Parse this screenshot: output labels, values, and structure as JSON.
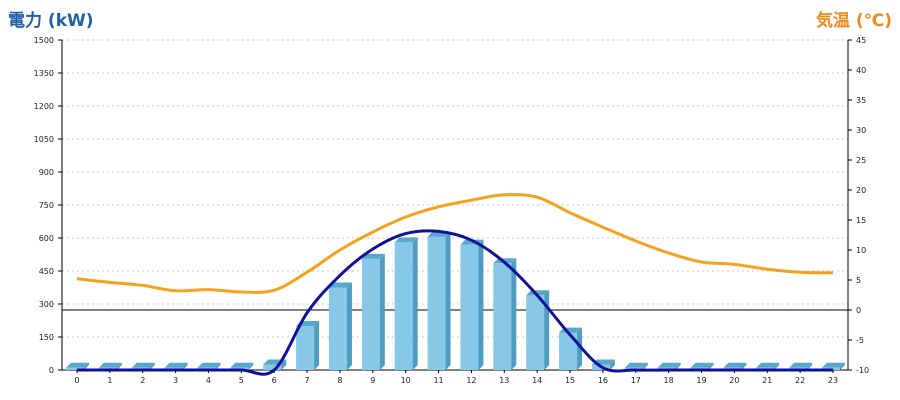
{
  "chart_data": {
    "type": "bar",
    "title_left": "電力 (kW)",
    "title_right": "気温 (℃)",
    "categories": [
      "0",
      "1",
      "2",
      "3",
      "4",
      "5",
      "6",
      "7",
      "8",
      "9",
      "10",
      "11",
      "12",
      "13",
      "14",
      "15",
      "16",
      "17",
      "18",
      "19",
      "20",
      "21",
      "22",
      "23"
    ],
    "left_axis": {
      "min": 0,
      "max": 1500,
      "ticks": [
        0,
        150,
        300,
        450,
        600,
        750,
        900,
        1050,
        1200,
        1350,
        1500
      ]
    },
    "right_axis": {
      "min": -10,
      "max": 45,
      "ticks": [
        -10,
        -5,
        0,
        5,
        10,
        15,
        20,
        25,
        30,
        35,
        40,
        45
      ]
    },
    "grid": true,
    "series": [
      {
        "kind": "bar",
        "axis": "left",
        "values": [
          10,
          10,
          10,
          10,
          10,
          10,
          25,
          200,
          375,
          505,
          580,
          605,
          570,
          485,
          340,
          170,
          25,
          10,
          10,
          10,
          10,
          10,
          10,
          10
        ]
      },
      {
        "kind": "line",
        "axis": "left",
        "values": [
          0,
          0,
          0,
          0,
          0,
          0,
          0,
          260,
          430,
          550,
          620,
          630,
          590,
          490,
          340,
          160,
          10,
          0,
          0,
          0,
          0,
          0,
          0,
          0
        ]
      },
      {
        "kind": "line",
        "axis": "right",
        "values": [
          5.2,
          4.6,
          4.1,
          3.2,
          3.4,
          3.0,
          3.3,
          6.3,
          10,
          13,
          15.5,
          17.2,
          18.3,
          19.2,
          18.8,
          16.2,
          13.8,
          11.5,
          9.5,
          8.0,
          7.6,
          6.8,
          6.3,
          6.2
        ]
      }
    ],
    "colors": {
      "bar": "#87c8e8",
      "power_line": "#10109a",
      "temp_line": "#f5a11c",
      "zero_line": "#000000"
    }
  }
}
